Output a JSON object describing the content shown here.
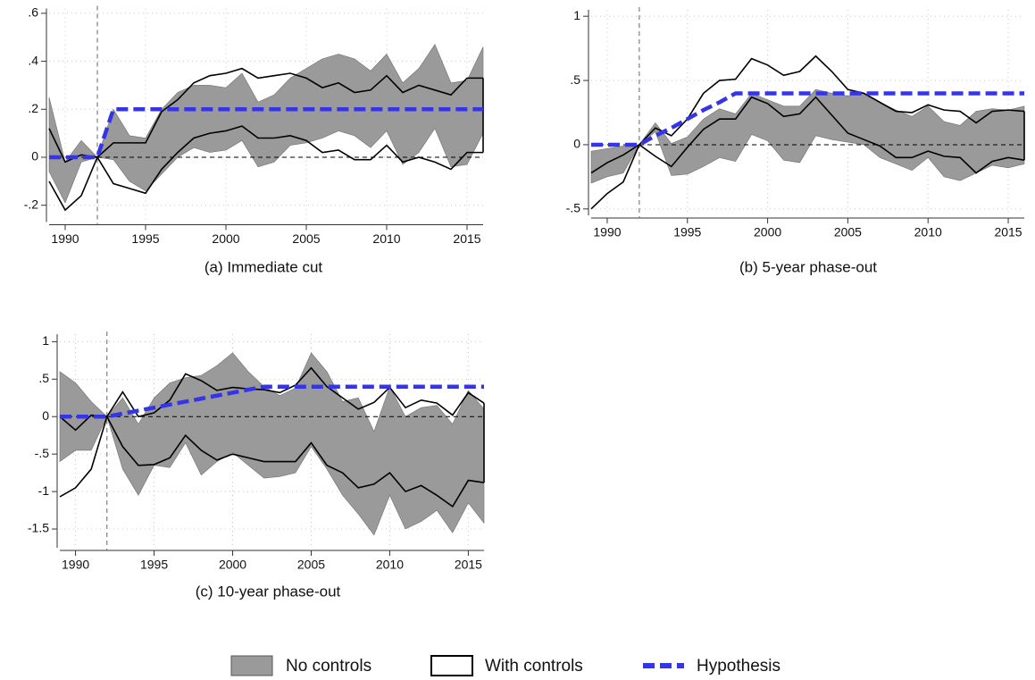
{
  "chart_data": [
    {
      "type": "band-line",
      "caption": "(a) Immediate cut",
      "x": [
        1989,
        1990,
        1991,
        1992,
        1993,
        1994,
        1995,
        1996,
        1997,
        1998,
        1999,
        2000,
        2001,
        2002,
        2003,
        2004,
        2005,
        2006,
        2007,
        2008,
        2009,
        2010,
        2011,
        2012,
        2013,
        2014,
        2015,
        2016
      ],
      "xlim": [
        1989,
        2016
      ],
      "xticks": [
        1990,
        1995,
        2000,
        2005,
        2010,
        2015
      ],
      "ylim": [
        -0.27,
        0.62
      ],
      "yticks": [
        {
          "value": -0.2,
          "label": "-.2"
        },
        0,
        {
          "value": 0.2,
          "label": ".2"
        },
        {
          "value": 0.4,
          "label": ".4"
        },
        {
          "value": 0.6,
          "label": ".6"
        }
      ],
      "grid": true,
      "vline": 1992,
      "hline": 0,
      "series": [
        {
          "name": "No controls",
          "color": "#9a9a9a",
          "upper": [
            0.25,
            -0.02,
            0.07,
            0,
            0.2,
            0.09,
            0.08,
            0.2,
            0.27,
            0.3,
            0.3,
            0.29,
            0.35,
            0.23,
            0.26,
            0.33,
            0.37,
            0.41,
            0.43,
            0.41,
            0.36,
            0.43,
            0.31,
            0.37,
            0.47,
            0.31,
            0.32,
            0.46
          ],
          "lower": [
            -0.06,
            -0.19,
            -0.02,
            0,
            -0.01,
            -0.1,
            -0.14,
            -0.07,
            0,
            0.04,
            0.02,
            0.03,
            0.07,
            -0.04,
            -0.02,
            0.05,
            0.06,
            0.08,
            0.11,
            0.09,
            0.04,
            0.11,
            -0.03,
            0.02,
            0.12,
            -0.04,
            -0.03,
            0.1
          ]
        },
        {
          "name": "With controls",
          "color": "#000000",
          "upper": [
            0.12,
            -0.02,
            0.01,
            0,
            0.06,
            0.06,
            0.06,
            0.19,
            0.24,
            0.31,
            0.34,
            0.35,
            0.37,
            0.33,
            0.34,
            0.35,
            0.33,
            0.29,
            0.31,
            0.27,
            0.28,
            0.34,
            0.27,
            0.3,
            0.28,
            0.26,
            0.33,
            0.33
          ],
          "lower": [
            -0.1,
            -0.22,
            -0.16,
            0,
            -0.11,
            -0.13,
            -0.15,
            -0.05,
            0.02,
            0.08,
            0.1,
            0.11,
            0.13,
            0.08,
            0.08,
            0.09,
            0.07,
            0.02,
            0.03,
            -0.01,
            -0.01,
            0.05,
            -0.02,
            0,
            -0.02,
            -0.05,
            0.02,
            0.02
          ]
        },
        {
          "name": "Hypothesis",
          "color": "#3535e8",
          "values": [
            0,
            0,
            0,
            0,
            0.2,
            0.2,
            0.2,
            0.2,
            0.2,
            0.2,
            0.2,
            0.2,
            0.2,
            0.2,
            0.2,
            0.2,
            0.2,
            0.2,
            0.2,
            0.2,
            0.2,
            0.2,
            0.2,
            0.2,
            0.2,
            0.2,
            0.2,
            0.2
          ]
        }
      ]
    },
    {
      "type": "band-line",
      "caption": "(b) 5-year phase-out",
      "x": [
        1989,
        1990,
        1991,
        1992,
        1993,
        1994,
        1995,
        1996,
        1997,
        1998,
        1999,
        2000,
        2001,
        2002,
        2003,
        2004,
        2005,
        2006,
        2007,
        2008,
        2009,
        2010,
        2011,
        2012,
        2013,
        2014,
        2015,
        2016
      ],
      "xlim": [
        1989,
        2016
      ],
      "xticks": [
        1990,
        1995,
        2000,
        2005,
        2010,
        2015
      ],
      "ylim": [
        -0.55,
        1.05
      ],
      "yticks": [
        {
          "value": -0.5,
          "label": "-.5"
        },
        0,
        {
          "value": 0.5,
          "label": ".5"
        },
        1
      ],
      "grid": true,
      "vline": 1992,
      "hline": 0,
      "series": [
        {
          "color": "#9a9a9a",
          "upper": [
            -0.05,
            -0.03,
            -0.01,
            0,
            0.17,
            0.01,
            0.06,
            0.2,
            0.28,
            0.24,
            0.4,
            0.35,
            0.3,
            0.3,
            0.43,
            0.4,
            0.38,
            0.4,
            0.33,
            0.27,
            0.22,
            0.3,
            0.18,
            0.15,
            0.26,
            0.28,
            0.27,
            0.3
          ],
          "lower": [
            -0.3,
            -0.25,
            -0.22,
            0,
            0.1,
            -0.24,
            -0.23,
            -0.17,
            -0.1,
            -0.13,
            0.08,
            0.03,
            -0.12,
            -0.14,
            0.07,
            0.04,
            0.02,
            0,
            -0.1,
            -0.15,
            -0.2,
            -0.1,
            -0.25,
            -0.28,
            -0.22,
            -0.16,
            -0.18,
            -0.15
          ]
        },
        {
          "color": "#000000",
          "upper": [
            -0.22,
            -0.14,
            -0.08,
            0,
            0.13,
            0.07,
            0.2,
            0.4,
            0.5,
            0.51,
            0.67,
            0.62,
            0.54,
            0.57,
            0.69,
            0.57,
            0.43,
            0.4,
            0.33,
            0.26,
            0.25,
            0.31,
            0.27,
            0.26,
            0.17,
            0.26,
            0.27,
            0.26
          ],
          "lower": [
            -0.5,
            -0.38,
            -0.29,
            0,
            -0.09,
            -0.17,
            -0.02,
            0.12,
            0.2,
            0.2,
            0.37,
            0.32,
            0.22,
            0.24,
            0.37,
            0.23,
            0.09,
            0.04,
            -0.01,
            -0.1,
            -0.1,
            -0.05,
            -0.09,
            -0.1,
            -0.22,
            -0.13,
            -0.1,
            -0.12
          ]
        },
        {
          "color": "#3535e8",
          "values": [
            0,
            0,
            0,
            0,
            0.07,
            0.13,
            0.2,
            0.27,
            0.33,
            0.4,
            0.4,
            0.4,
            0.4,
            0.4,
            0.4,
            0.4,
            0.4,
            0.4,
            0.4,
            0.4,
            0.4,
            0.4,
            0.4,
            0.4,
            0.4,
            0.4,
            0.4,
            0.4
          ]
        }
      ]
    },
    {
      "type": "band-line",
      "caption": "(c) 10-year phase-out",
      "x": [
        1989,
        1990,
        1991,
        1992,
        1993,
        1994,
        1995,
        1996,
        1997,
        1998,
        1999,
        2000,
        2001,
        2002,
        2003,
        2004,
        2005,
        2006,
        2007,
        2008,
        2009,
        2010,
        2011,
        2012,
        2013,
        2014,
        2015,
        2016
      ],
      "xlim": [
        1989,
        2016
      ],
      "xticks": [
        1990,
        1995,
        2000,
        2005,
        2010,
        2015
      ],
      "ylim": [
        -1.75,
        1.1
      ],
      "yticks": [
        -1.5,
        -1,
        {
          "value": -0.5,
          "label": "-.5"
        },
        0,
        {
          "value": 0.5,
          "label": ".5"
        },
        1
      ],
      "grid": true,
      "vline": 1992,
      "hline": 0,
      "series": [
        {
          "color": "#9a9a9a",
          "upper": [
            0.6,
            0.45,
            0.2,
            0,
            0.25,
            -0.1,
            0.25,
            0.45,
            0.52,
            0.55,
            0.68,
            0.85,
            0.6,
            0.4,
            0.28,
            0.38,
            0.85,
            0.6,
            0.2,
            0.25,
            -0.2,
            0.4,
            0,
            0.12,
            0.15,
            -0.1,
            0.35,
            0.1
          ],
          "lower": [
            -0.6,
            -0.45,
            -0.45,
            0,
            -0.7,
            -1.05,
            -0.65,
            -0.68,
            -0.35,
            -0.78,
            -0.6,
            -0.48,
            -0.65,
            -0.82,
            -0.8,
            -0.75,
            -0.4,
            -0.7,
            -1.05,
            -1.3,
            -1.58,
            -1.05,
            -1.5,
            -1.4,
            -1.25,
            -1.55,
            -1.15,
            -1.42
          ]
        },
        {
          "color": "#000000",
          "upper": [
            0,
            -0.18,
            0.02,
            0,
            0.33,
            0,
            0.05,
            0.22,
            0.57,
            0.48,
            0.35,
            0.39,
            0.37,
            0.36,
            0.32,
            0.42,
            0.65,
            0.4,
            0.25,
            0.1,
            0.19,
            0.39,
            0.12,
            0.22,
            0.18,
            0.02,
            0.32,
            0.18
          ],
          "lower": [
            -1.07,
            -0.95,
            -0.7,
            0,
            -0.4,
            -0.65,
            -0.64,
            -0.55,
            -0.25,
            -0.45,
            -0.58,
            -0.5,
            -0.55,
            -0.6,
            -0.6,
            -0.6,
            -0.35,
            -0.65,
            -0.75,
            -0.95,
            -0.9,
            -0.75,
            -1,
            -0.92,
            -1.05,
            -1.2,
            -0.85,
            -0.88
          ]
        },
        {
          "color": "#3535e8",
          "values": [
            0,
            0,
            0,
            0,
            0.04,
            0.08,
            0.12,
            0.16,
            0.2,
            0.24,
            0.28,
            0.32,
            0.36,
            0.4,
            0.4,
            0.4,
            0.4,
            0.4,
            0.4,
            0.4,
            0.4,
            0.4,
            0.4,
            0.4,
            0.4,
            0.4,
            0.4,
            0.4
          ]
        }
      ]
    }
  ]
}
